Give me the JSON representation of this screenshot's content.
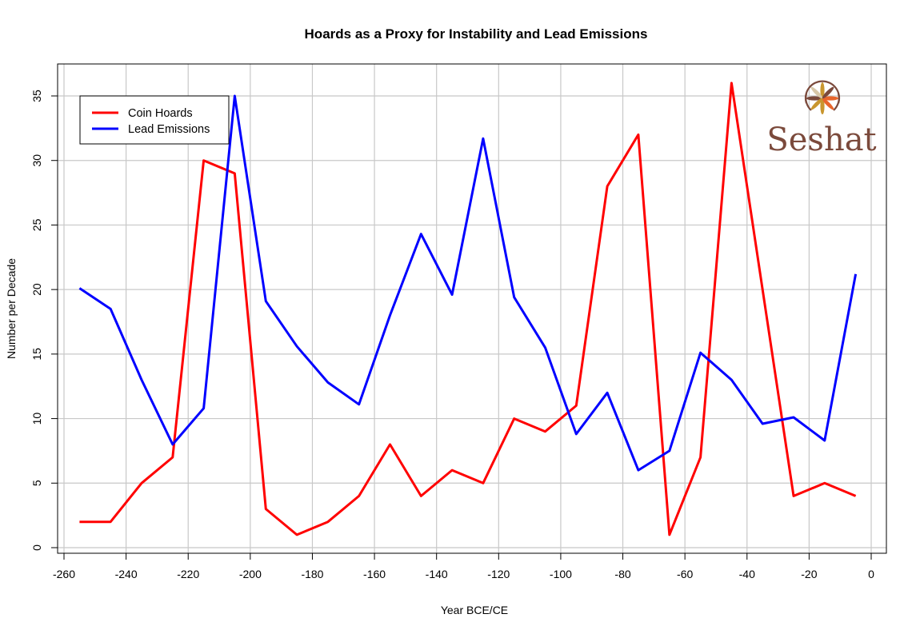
{
  "chart_data": {
    "type": "line",
    "title": "Hoards as a Proxy for Instability and Lead Emissions",
    "xlabel": "Year BCE/CE",
    "ylabel": "Number per Decade",
    "xlim": [
      -265,
      5
    ],
    "ylim": [
      -1,
      37
    ],
    "xticks": [
      -260,
      -240,
      -220,
      -200,
      -180,
      -160,
      -140,
      -120,
      -100,
      -80,
      -60,
      -40,
      -20,
      0
    ],
    "yticks": [
      0,
      5,
      10,
      15,
      20,
      25,
      30,
      35
    ],
    "grid": true,
    "legend_position": "top-left",
    "x": [
      -255,
      -245,
      -235,
      -225,
      -215,
      -205,
      -195,
      -185,
      -175,
      -165,
      -155,
      -145,
      -135,
      -125,
      -115,
      -105,
      -95,
      -85,
      -75,
      -65,
      -55,
      -45,
      -35,
      -25,
      -15,
      -5
    ],
    "series": [
      {
        "name": "Coin Hoards",
        "color": "#ff0000",
        "values": [
          2,
          2,
          5,
          7,
          30,
          29,
          3,
          1,
          2,
          4,
          8,
          4,
          6,
          5,
          10,
          9,
          11,
          28,
          32,
          1,
          7,
          36,
          20,
          4,
          5,
          4
        ]
      },
      {
        "name": "Lead Emissions",
        "color": "#0000ff",
        "values": [
          20.1,
          18.5,
          13,
          8,
          10.8,
          35,
          19.1,
          15.6,
          12.8,
          11.1,
          18,
          24.3,
          19.6,
          31.7,
          19.4,
          15.5,
          8.8,
          12,
          6,
          7.5,
          15.1,
          13,
          9.6,
          10.1,
          8.3,
          21.2
        ]
      }
    ]
  },
  "logo": {
    "text": "Seshat",
    "color": "#7b4a3c",
    "icon": "compass-star-icon"
  }
}
